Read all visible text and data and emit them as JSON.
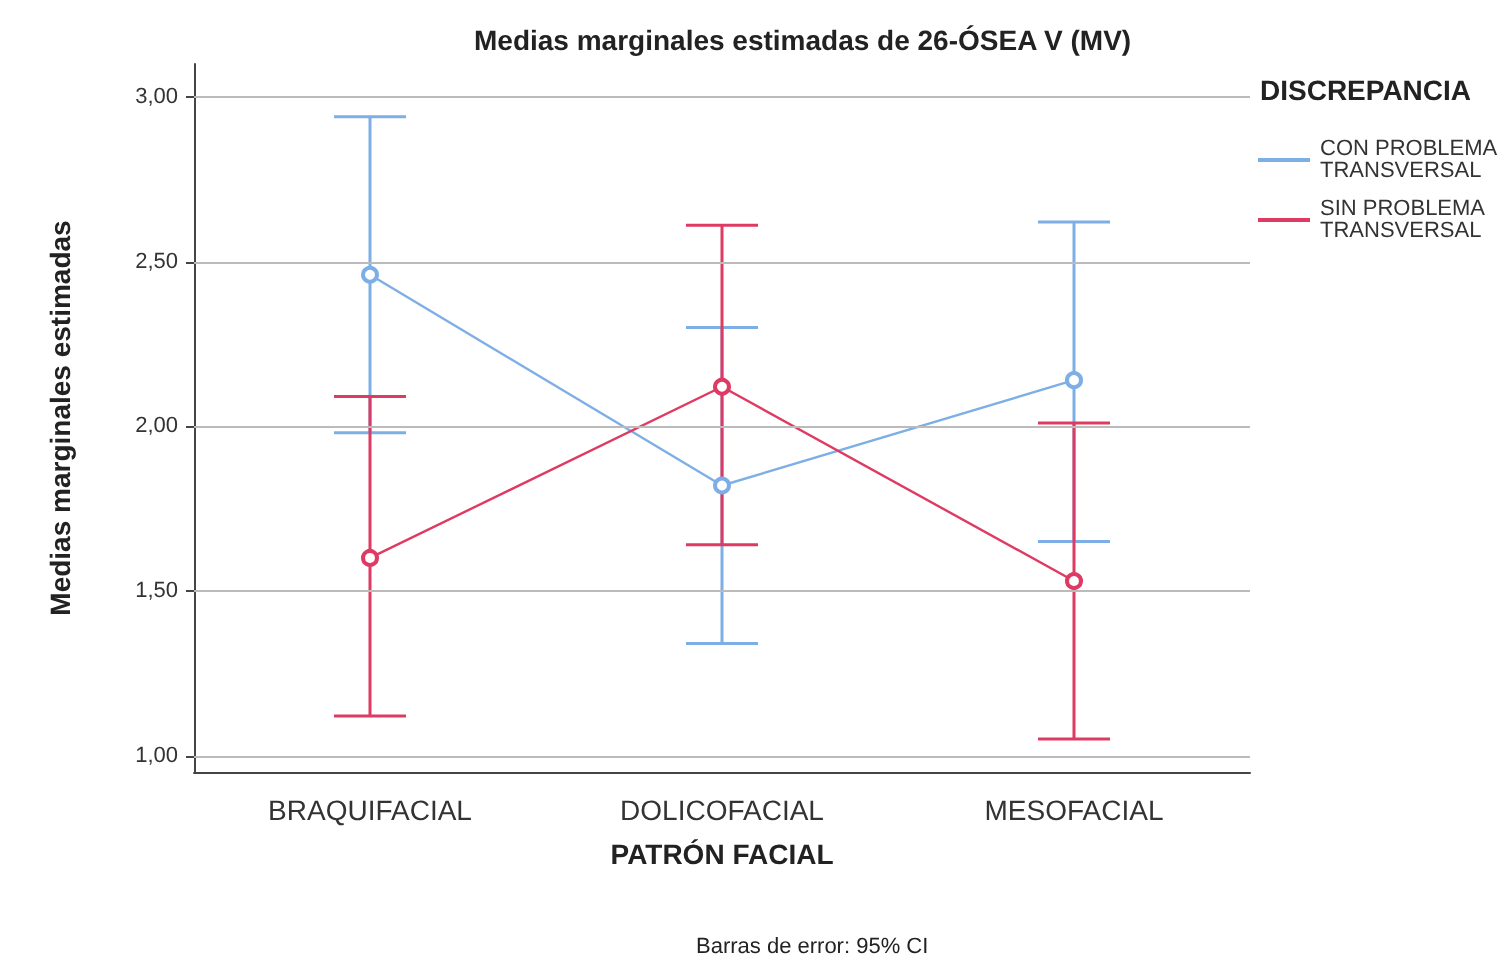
{
  "chart_data": {
    "type": "line",
    "title": "Medias marginales estimadas de 26-ÓSEA V (MV)",
    "xlabel": "PATRÓN FACIAL",
    "ylabel": "Medias marginales estimadas",
    "legend_title": "DISCREPANCIA",
    "categories": [
      "BRAQUIFACIAL",
      "DOLICOFACIAL",
      "MESOFACIAL"
    ],
    "series": [
      {
        "name": "CON PROBLEMA TRANSVERSAL",
        "color": "#7eaee6",
        "values": [
          2.46,
          1.82,
          2.14
        ],
        "errors": [
          [
            1.98,
            2.94
          ],
          [
            1.34,
            2.3
          ],
          [
            1.65,
            2.62
          ]
        ]
      },
      {
        "name": "SIN PROBLEMA TRANSVERSAL",
        "color": "#de3a62",
        "values": [
          1.6,
          2.12,
          1.53
        ],
        "errors": [
          [
            1.12,
            2.09
          ],
          [
            1.64,
            2.61
          ],
          [
            1.05,
            2.01
          ]
        ]
      }
    ],
    "ylim": [
      0.95,
      3.1
    ],
    "yticks": [
      {
        "value": 1,
        "label": "1,00"
      },
      {
        "value": 1.5,
        "label": "1,50"
      },
      {
        "value": 2,
        "label": "2,00"
      },
      {
        "value": 2.5,
        "label": "2,50"
      },
      {
        "value": 3,
        "label": "3,00"
      }
    ],
    "grid": "y",
    "legend": "right",
    "marker": "circle",
    "line_style": "solid",
    "annotations": [
      "Barras de error: 95% CI"
    ]
  }
}
